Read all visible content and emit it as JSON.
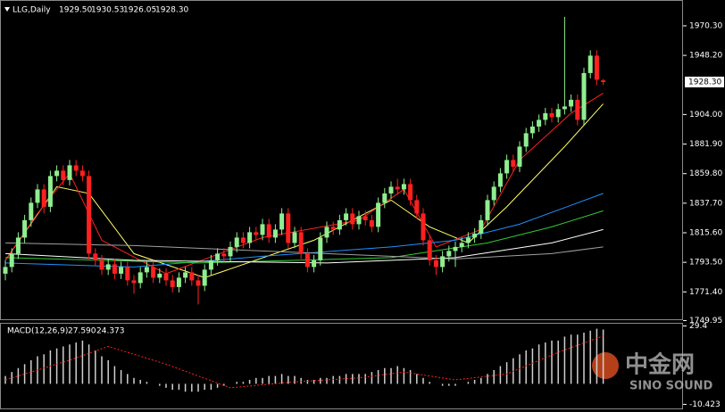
{
  "chart_data": {
    "type": "candlestick",
    "symbol": "LLG,Daily",
    "header_values": [
      "1929.50",
      "1930.53",
      "1926.05",
      "1928.30"
    ],
    "up_color": "#90ee90",
    "down_color": "#ff2020",
    "ylim": [
      1749.6,
      1989.6
    ],
    "yticks": [
      {
        "value": 1970.3,
        "label": "1970.30"
      },
      {
        "value": 1948.2,
        "label": "1948.20"
      },
      {
        "value": 1904,
        "label": "1904.00"
      },
      {
        "value": 1881.9,
        "label": "1881.90"
      },
      {
        "value": 1859.8,
        "label": "1859.80"
      },
      {
        "value": 1837.7,
        "label": "1837.70"
      },
      {
        "value": 1815.6,
        "label": "1815.60"
      },
      {
        "value": 1793.5,
        "label": "1793.50"
      },
      {
        "value": 1771.4,
        "label": "1771.40"
      },
      1749.95
    ],
    "last_price": {
      "value": 1928.3,
      "label": "1928.30"
    },
    "ohlc": [
      [
        1785,
        1795,
        1780,
        1790
      ],
      [
        1790,
        1804,
        1786,
        1800
      ],
      [
        1800,
        1816,
        1796,
        1812
      ],
      [
        1812,
        1829,
        1808,
        1825
      ],
      [
        1825,
        1842,
        1820,
        1838
      ],
      [
        1838,
        1852,
        1834,
        1848
      ],
      [
        1848,
        1852,
        1830,
        1835
      ],
      [
        1835,
        1862,
        1831,
        1858
      ],
      [
        1858,
        1866,
        1854,
        1862
      ],
      [
        1862,
        1866,
        1851,
        1855
      ],
      [
        1855,
        1870,
        1851,
        1866
      ],
      [
        1866,
        1870,
        1858,
        1862
      ],
      [
        1862,
        1866,
        1854,
        1858
      ],
      [
        1858,
        1862,
        1796,
        1800
      ],
      [
        1800,
        1804,
        1791,
        1795
      ],
      [
        1795,
        1799,
        1784,
        1788
      ],
      [
        1788,
        1796,
        1784,
        1792
      ],
      [
        1792,
        1796,
        1781,
        1785
      ],
      [
        1785,
        1794,
        1781,
        1790
      ],
      [
        1790,
        1794,
        1776,
        1780
      ],
      [
        1780,
        1784,
        1770,
        1778
      ],
      [
        1778,
        1790,
        1774,
        1786
      ],
      [
        1786,
        1794,
        1782,
        1790
      ],
      [
        1790,
        1794,
        1778,
        1782
      ],
      [
        1782,
        1789,
        1778,
        1785
      ],
      [
        1785,
        1789,
        1776,
        1780
      ],
      [
        1780,
        1784,
        1771,
        1775
      ],
      [
        1775,
        1786,
        1771,
        1782
      ],
      [
        1782,
        1790,
        1778,
        1786
      ],
      [
        1786,
        1790,
        1776,
        1780
      ],
      [
        1780,
        1784,
        1762,
        1776
      ],
      [
        1776,
        1792,
        1772,
        1788
      ],
      [
        1788,
        1799,
        1784,
        1795
      ],
      [
        1795,
        1804,
        1791,
        1800
      ],
      [
        1800,
        1804,
        1794,
        1798
      ],
      [
        1798,
        1809,
        1794,
        1805
      ],
      [
        1805,
        1816,
        1801,
        1812
      ],
      [
        1812,
        1816,
        1804,
        1808
      ],
      [
        1808,
        1820,
        1804,
        1816
      ],
      [
        1816,
        1820,
        1810,
        1814
      ],
      [
        1814,
        1826,
        1810,
        1822
      ],
      [
        1822,
        1826,
        1808,
        1812
      ],
      [
        1812,
        1822,
        1808,
        1818
      ],
      [
        1818,
        1834,
        1814,
        1830
      ],
      [
        1830,
        1834,
        1804,
        1808
      ],
      [
        1808,
        1820,
        1804,
        1816
      ],
      [
        1816,
        1820,
        1796,
        1800
      ],
      [
        1800,
        1804,
        1786,
        1790
      ],
      [
        1790,
        1799,
        1786,
        1795
      ],
      [
        1795,
        1816,
        1791,
        1812
      ],
      [
        1812,
        1824,
        1808,
        1820
      ],
      [
        1820,
        1824,
        1814,
        1818
      ],
      [
        1818,
        1829,
        1814,
        1825
      ],
      [
        1825,
        1834,
        1821,
        1830
      ],
      [
        1830,
        1834,
        1818,
        1822
      ],
      [
        1822,
        1832,
        1818,
        1828
      ],
      [
        1828,
        1832,
        1821,
        1825
      ],
      [
        1825,
        1829,
        1816,
        1820
      ],
      [
        1820,
        1842,
        1816,
        1838
      ],
      [
        1838,
        1849,
        1834,
        1845
      ],
      [
        1845,
        1854,
        1841,
        1850
      ],
      [
        1850,
        1856,
        1844,
        1848
      ],
      [
        1848,
        1856,
        1844,
        1852
      ],
      [
        1852,
        1856,
        1836,
        1840
      ],
      [
        1840,
        1844,
        1826,
        1830
      ],
      [
        1830,
        1834,
        1806,
        1810
      ],
      [
        1810,
        1814,
        1791,
        1795
      ],
      [
        1795,
        1799,
        1784,
        1790
      ],
      [
        1790,
        1802,
        1786,
        1798
      ],
      [
        1798,
        1806,
        1794,
        1802
      ],
      [
        1802,
        1809,
        1790,
        1805
      ],
      [
        1805,
        1812,
        1801,
        1808
      ],
      [
        1808,
        1816,
        1804,
        1812
      ],
      [
        1812,
        1819,
        1808,
        1815
      ],
      [
        1815,
        1829,
        1811,
        1825
      ],
      [
        1825,
        1844,
        1821,
        1840
      ],
      [
        1840,
        1854,
        1836,
        1850
      ],
      [
        1850,
        1864,
        1846,
        1860
      ],
      [
        1860,
        1874,
        1856,
        1870
      ],
      [
        1870,
        1874,
        1861,
        1865
      ],
      [
        1865,
        1884,
        1861,
        1880
      ],
      [
        1880,
        1894,
        1876,
        1890
      ],
      [
        1890,
        1899,
        1886,
        1895
      ],
      [
        1895,
        1904,
        1891,
        1900
      ],
      [
        1900,
        1909,
        1896,
        1905
      ],
      [
        1905,
        1909,
        1898,
        1902
      ],
      [
        1902,
        1912,
        1898,
        1908
      ],
      [
        1908,
        1977,
        1904,
        1910
      ],
      [
        1910,
        1919,
        1906,
        1915
      ],
      [
        1915,
        1919,
        1896,
        1900
      ],
      [
        1900,
        1939,
        1896,
        1935
      ],
      [
        1935,
        1952,
        1931,
        1948
      ],
      [
        1948,
        1952,
        1926,
        1930
      ],
      [
        1929.5,
        1930.53,
        1926.05,
        1928.3
      ]
    ],
    "series": [
      {
        "color": "#ffff66",
        "x": [
          0,
          8,
          13,
          20,
          31,
          48,
          60,
          66,
          72,
          78,
          87,
          93
        ],
        "values": [
          1795,
          1850,
          1845,
          1800,
          1782,
          1810,
          1840,
          1820,
          1808,
          1835,
          1880,
          1912
        ]
      },
      {
        "color": "#ff2020",
        "x": [
          0,
          5,
          10,
          15,
          25,
          40,
          55,
          62,
          67,
          74,
          80,
          88,
          93
        ],
        "values": [
          1795,
          1830,
          1860,
          1810,
          1785,
          1812,
          1825,
          1848,
          1805,
          1818,
          1870,
          1905,
          1920
        ]
      },
      {
        "color": "#1e90ff",
        "x": [
          0,
          20,
          40,
          60,
          70,
          80,
          93
        ],
        "values": [
          1793,
          1790,
          1798,
          1805,
          1810,
          1822,
          1845
        ]
      },
      {
        "color": "#32cd32",
        "x": [
          0,
          30,
          60,
          75,
          85,
          93
        ],
        "values": [
          1797,
          1793,
          1797,
          1808,
          1820,
          1832
        ]
      },
      {
        "color": "#ffffff",
        "x": [
          0,
          20,
          50,
          70,
          85,
          93
        ],
        "values": [
          1800,
          1795,
          1793,
          1797,
          1808,
          1818
        ]
      },
      {
        "color": "#a0a0a0",
        "x": [
          0,
          20,
          50,
          70,
          85,
          93
        ],
        "values": [
          1808,
          1806,
          1800,
          1796,
          1800,
          1805
        ]
      }
    ],
    "macd": {
      "title": "MACD(12,26,9)",
      "value_labels": [
        "27.590",
        "24.373"
      ],
      "ylim": [
        -12.5,
        31
      ],
      "yticks": [
        29.4,
        -10.423
      ],
      "histogram": [
        4,
        6,
        8,
        10,
        12,
        14,
        15,
        17,
        18,
        19,
        20,
        21,
        22,
        20,
        17,
        14,
        12,
        9,
        7,
        5,
        3,
        2,
        1,
        0,
        -1,
        -2,
        -3,
        -3,
        -4,
        -4,
        -4,
        -3,
        -3,
        -2,
        -1,
        0,
        1,
        1,
        2,
        3,
        3,
        4,
        4,
        5,
        4,
        4,
        3,
        2,
        2,
        3,
        3,
        4,
        4,
        5,
        5,
        5,
        5,
        6,
        7,
        8,
        8,
        9,
        8,
        7,
        5,
        3,
        1,
        0,
        -1,
        -1,
        -1,
        0,
        1,
        2,
        3,
        5,
        7,
        9,
        11,
        13,
        15,
        17,
        18,
        20,
        21,
        22,
        22,
        24,
        25,
        25,
        26,
        27,
        28,
        27.59
      ],
      "signal": {
        "color": "#ff2020",
        "x": [
          0,
          10,
          16,
          25,
          35,
          45,
          55,
          62,
          70,
          78,
          86,
          93
        ],
        "values": [
          2,
          12,
          19,
          10,
          -2,
          1,
          3,
          6,
          2,
          5,
          16,
          24.373
        ]
      }
    },
    "watermark": [
      "中金网",
      "SINO SOUND"
    ]
  }
}
